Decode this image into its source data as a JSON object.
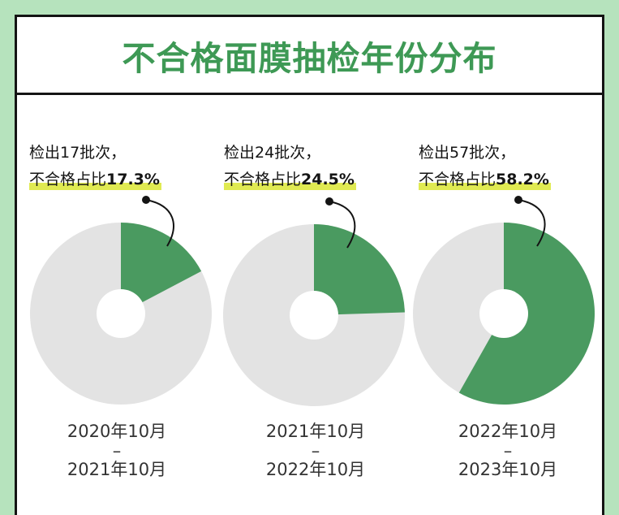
{
  "title": "不合格面膜抽检年份分布",
  "colors": {
    "failed": "#4a9a60",
    "rest": "#e3e3e3",
    "title": "#3e9955",
    "highlight": "#e0ea52",
    "background": "#b6e3bd"
  },
  "chart_data": [
    {
      "type": "pie",
      "label_line1": "检出17批次，",
      "label_prefix": "不合格占比",
      "label_value": "17.3%",
      "failed_percent": 17.3,
      "batches": 17,
      "period_start": "2020年10月",
      "period_sep": "–",
      "period_end": "2021年10月"
    },
    {
      "type": "pie",
      "label_line1": "检出24批次，",
      "label_prefix": "不合格占比",
      "label_value": "24.5%",
      "failed_percent": 24.5,
      "batches": 24,
      "period_start": "2021年10月",
      "period_sep": "–",
      "period_end": "2022年10月"
    },
    {
      "type": "pie",
      "label_line1": "检出57批次，",
      "label_prefix": "不合格占比",
      "label_value": "58.2%",
      "failed_percent": 58.2,
      "batches": 57,
      "period_start": "2022年10月",
      "period_sep": "–",
      "period_end": "2023年10月"
    }
  ]
}
